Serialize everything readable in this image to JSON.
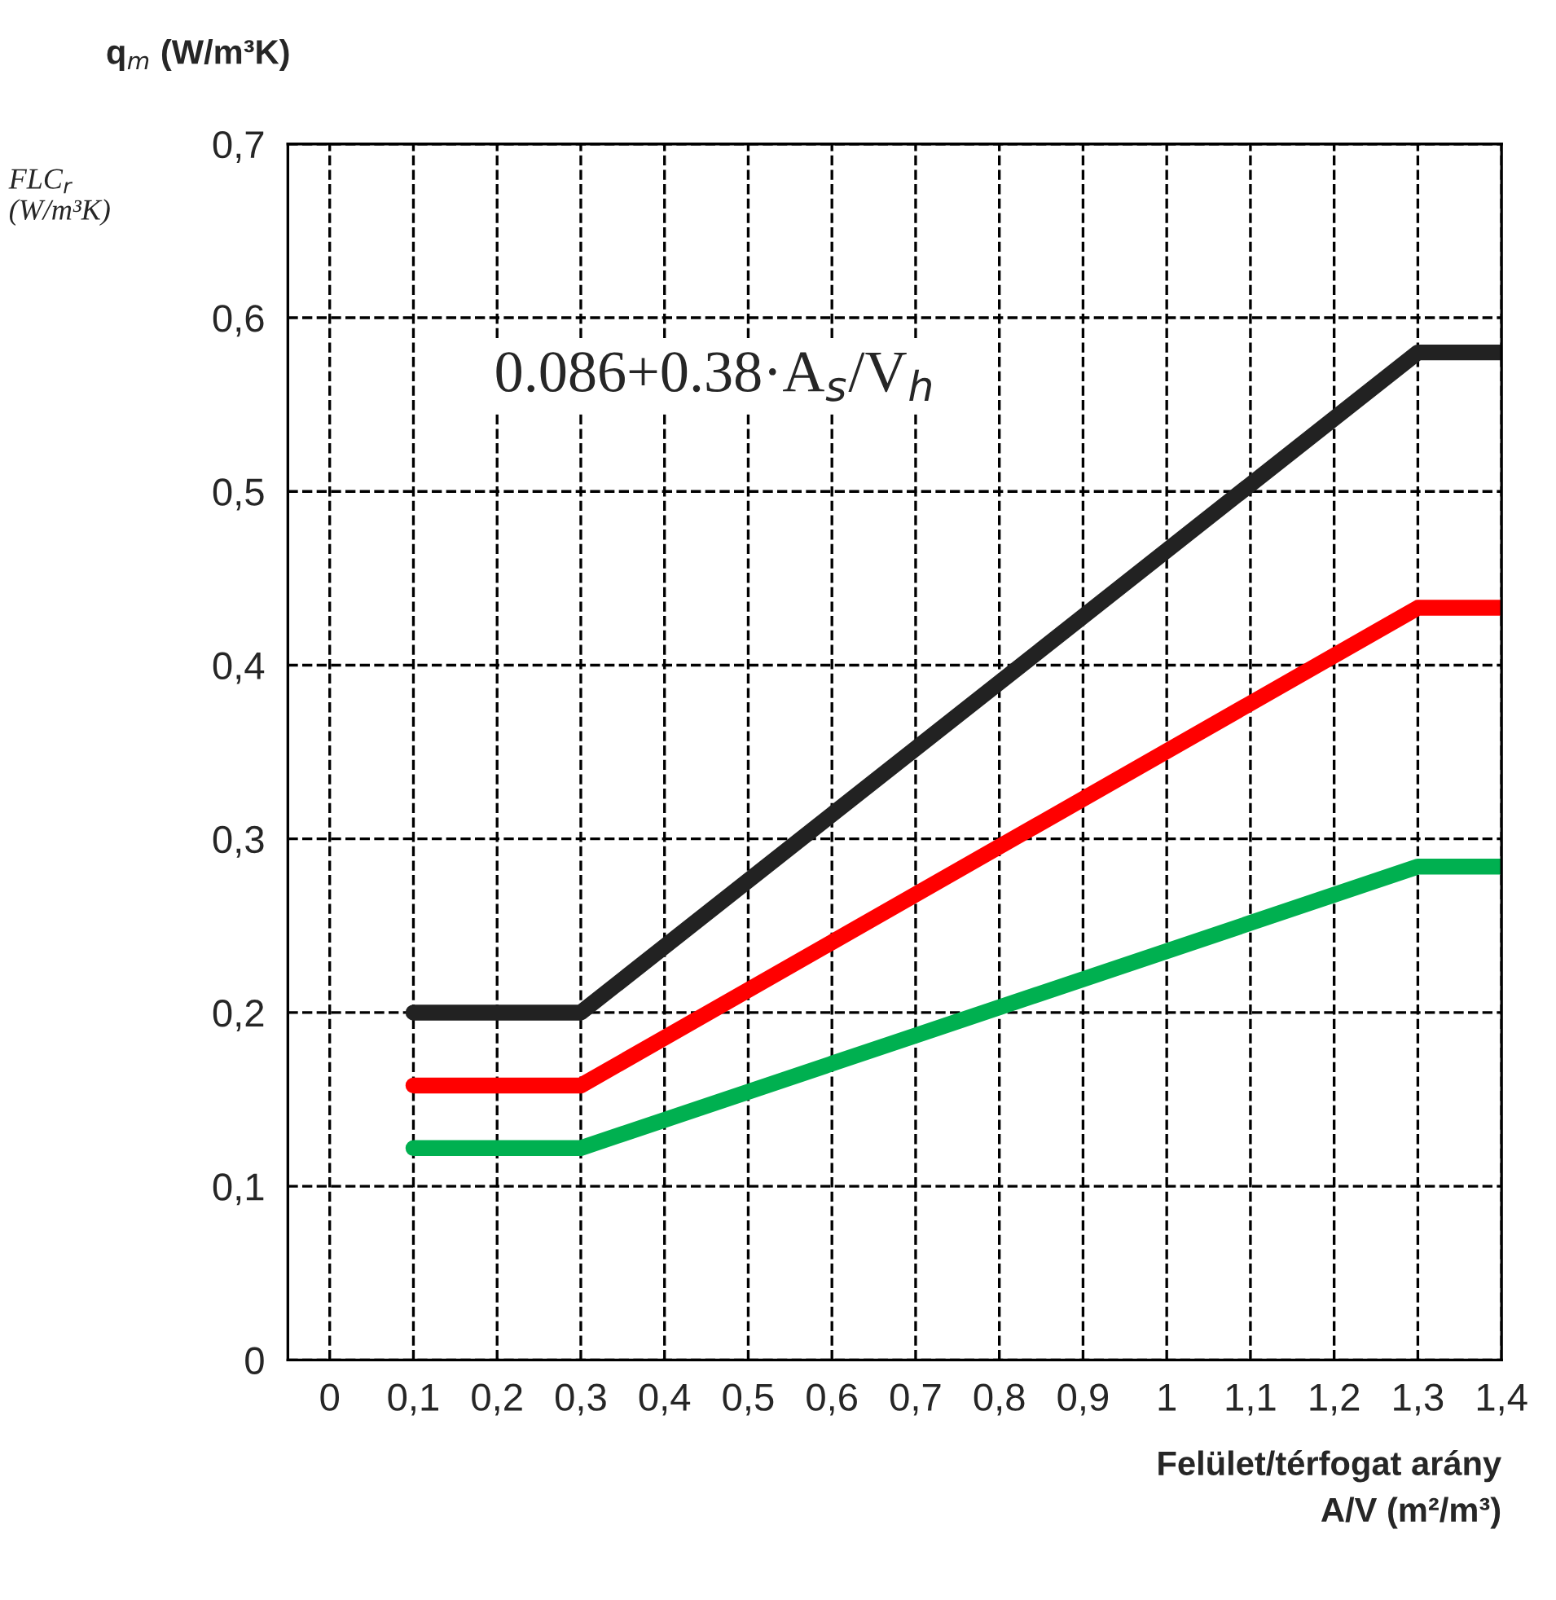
{
  "chart_data": {
    "type": "line",
    "ylabel": "q$_{m}$ (W/m³K)",
    "xlabel": "Felület/térfogat arány\nA/V (m²/m³)",
    "annotations": [
      "0.086+0.38·A$_{s}$/V$_{h}$",
      "FLC$_{r}$\n(W/m³K)"
    ],
    "x": [
      0.1,
      0.3,
      1.3,
      1.4
    ],
    "series": [
      {
        "color": "#222222",
        "values": [
          0.2,
          0.2,
          0.58,
          0.58
        ]
      },
      {
        "color": "#ff0000",
        "values": [
          0.158,
          0.158,
          0.433,
          0.433
        ]
      },
      {
        "color": "#00b050",
        "values": [
          0.122,
          0.122,
          0.284,
          0.284
        ]
      }
    ],
    "xlim": [
      -0.05,
      1.4
    ],
    "ylim": [
      0,
      0.7
    ],
    "xticks": [
      0,
      {
        "value": 0.1,
        "label": "0,1"
      },
      {
        "value": 0.2,
        "label": "0,2"
      },
      {
        "value": 0.3,
        "label": "0,3"
      },
      {
        "value": 0.4,
        "label": "0,4"
      },
      {
        "value": 0.5,
        "label": "0,5"
      },
      {
        "value": 0.6,
        "label": "0,6"
      },
      {
        "value": 0.7,
        "label": "0,7"
      },
      {
        "value": 0.8,
        "label": "0,8"
      },
      {
        "value": 0.9,
        "label": "0,9"
      },
      1,
      {
        "value": 1.1,
        "label": "1,1"
      },
      {
        "value": 1.2,
        "label": "1,2"
      },
      {
        "value": 1.3,
        "label": "1,3"
      },
      {
        "value": 1.4,
        "label": "1,4"
      }
    ],
    "yticks": [
      0,
      {
        "value": 0.1,
        "label": "0,1"
      },
      {
        "value": 0.2,
        "label": "0,2"
      },
      {
        "value": 0.3,
        "label": "0,3"
      },
      {
        "value": 0.4,
        "label": "0,4"
      },
      {
        "value": 0.5,
        "label": "0,5"
      },
      {
        "value": 0.6,
        "label": "0,6"
      },
      {
        "value": 0.7,
        "label": "0,7"
      }
    ],
    "grid": true,
    "line_style": "solid",
    "marker": "none"
  }
}
